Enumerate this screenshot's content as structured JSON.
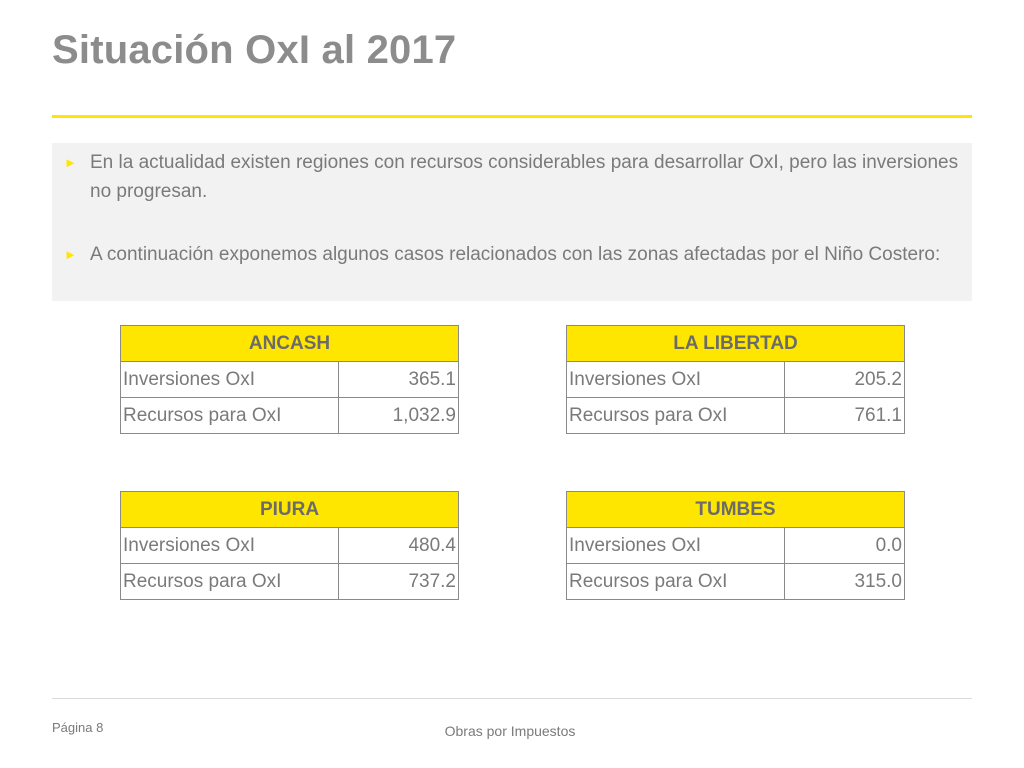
{
  "slide": {
    "title": "Situación OxI al 2017",
    "bullets": [
      "En la actualidad existen regiones con recursos considerables para desarrollar OxI, pero las inversiones no progresan.",
      "A continuación exponemos algunos casos relacionados con las zonas afectadas por el Niño Costero:"
    ],
    "bullet_marker": "►"
  },
  "tables": {
    "ancash": {
      "header": "ANCASH",
      "rows": [
        {
          "label": "Inversiones OxI",
          "value": "365.1"
        },
        {
          "label": "Recursos para OxI",
          "value": "1,032.9"
        }
      ]
    },
    "libertad": {
      "header": "LA LIBERTAD",
      "rows": [
        {
          "label": "Inversiones OxI",
          "value": "205.2"
        },
        {
          "label": "Recursos para OxI",
          "value": "761.1"
        }
      ]
    },
    "piura": {
      "header": "PIURA",
      "rows": [
        {
          "label": "Inversiones OxI",
          "value": "480.4"
        },
        {
          "label": "Recursos para OxI",
          "value": "737.2"
        }
      ]
    },
    "tumbes": {
      "header": "TUMBES",
      "rows": [
        {
          "label": "Inversiones OxI",
          "value": "0.0"
        },
        {
          "label": "Recursos para OxI",
          "value": "315.0"
        }
      ]
    }
  },
  "footer": {
    "page": "Página 8",
    "center": "Obras por Impuestos"
  },
  "colors": {
    "accent": "#ffe600",
    "text": "#7a7a7a",
    "title": "#8c8c8c",
    "panel": "#f2f2f2"
  }
}
